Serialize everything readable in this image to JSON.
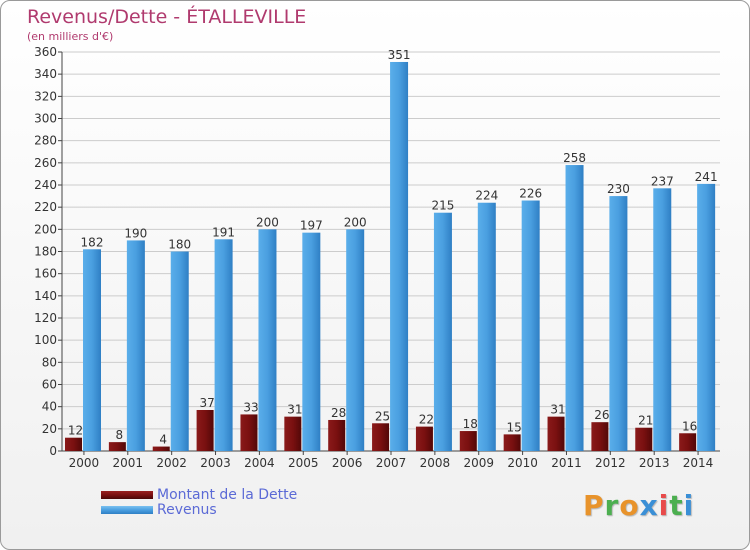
{
  "chart_data": {
    "type": "bar",
    "title": "Revenus/Dette - ÉTALLEVILLE",
    "subtitle": "(en milliers d'€)",
    "categories": [
      "2000",
      "2001",
      "2002",
      "2003",
      "2004",
      "2005",
      "2006",
      "2007",
      "2008",
      "2009",
      "2010",
      "2011",
      "2012",
      "2013",
      "2014"
    ],
    "series": [
      {
        "name": "Montant de la Dette",
        "values": [
          12,
          8,
          4,
          37,
          33,
          31,
          28,
          25,
          22,
          18,
          15,
          31,
          26,
          21,
          16
        ],
        "color": "#7a1010"
      },
      {
        "name": "Revenus",
        "values": [
          182,
          190,
          180,
          191,
          200,
          197,
          200,
          351,
          215,
          224,
          226,
          258,
          230,
          237,
          241
        ],
        "color": "#4a9fe0"
      }
    ],
    "yticks": [
      0,
      20,
      40,
      60,
      80,
      100,
      120,
      140,
      160,
      180,
      200,
      220,
      240,
      260,
      280,
      300,
      320,
      340,
      360
    ],
    "ylim": [
      0,
      360
    ],
    "grid": true,
    "legend_position": "bottom-left"
  },
  "logo": {
    "letters": [
      "P",
      "r",
      "o",
      "x",
      "i",
      "t",
      "i"
    ],
    "colors": [
      "#e8932b",
      "#4caf50",
      "#e8932b",
      "#3a8fd6",
      "#e84a4a",
      "#4caf50",
      "#3a8fd6"
    ]
  }
}
